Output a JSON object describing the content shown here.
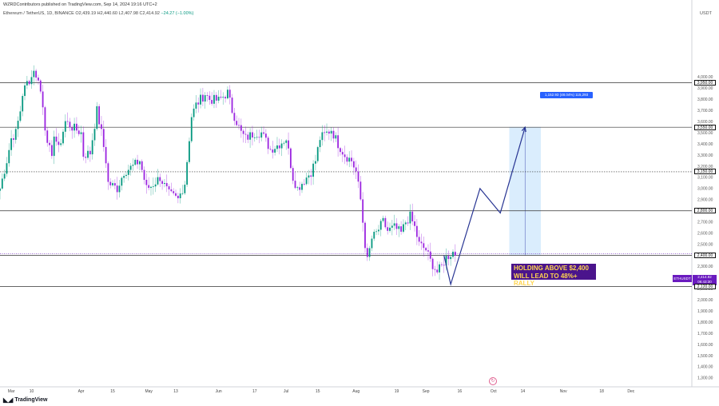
{
  "header": {
    "publish_line": "WZRDContributors published on TradingView.com, Sep 14, 2024 19:16 UTC+2",
    "symbol_line": "Ethereum / TetherUS, 1D, BINANCE  O2,439.19  H2,440.60  L2,407.98  C2,414.92",
    "change": "−24.27 (−1.00%)"
  },
  "branding": {
    "logo_icon": "tradingview-logo-icon",
    "name": "TradingView"
  },
  "colors": {
    "up": "#089981",
    "down": "#9c27e0",
    "accent": "#6a1bbf",
    "projection_line": "#283593",
    "range_fill": "#bbdefb"
  },
  "current_price": {
    "symbol": "ETHUSDT",
    "value": "2,414.92",
    "countdown": "06:43:30"
  },
  "annotation": {
    "line1": "HOLDING ABOVE $2,400",
    "line2": "WILL LEAD TO 48%+ RALLY"
  },
  "range_label": "1,152.93 (48.04%) 115,293",
  "chart_data": {
    "type": "candlestick",
    "symbol": "ETHUSDT",
    "timeframe": "1D",
    "y_unit": "USDT",
    "ylim": [
      1220,
      4620
    ],
    "xlim": [
      "2024-02-25",
      "2024-12-28"
    ],
    "x_ticks": [
      {
        "date": "2024-03-01",
        "label": "Mar"
      },
      {
        "date": "2024-03-10",
        "label": "10"
      },
      {
        "date": "2024-04-01",
        "label": "Apr"
      },
      {
        "date": "2024-04-15",
        "label": "15"
      },
      {
        "date": "2024-05-01",
        "label": "May"
      },
      {
        "date": "2024-05-13",
        "label": "13"
      },
      {
        "date": "2024-06-01",
        "label": "Jun"
      },
      {
        "date": "2024-06-17",
        "label": "17"
      },
      {
        "date": "2024-07-01",
        "label": "Jul"
      },
      {
        "date": "2024-07-15",
        "label": "15"
      },
      {
        "date": "2024-08-01",
        "label": "Aug"
      },
      {
        "date": "2024-08-19",
        "label": "19"
      },
      {
        "date": "2024-09-01",
        "label": "Sep"
      },
      {
        "date": "2024-09-16",
        "label": "16"
      },
      {
        "date": "2024-10-01",
        "label": "Oct"
      },
      {
        "date": "2024-10-14",
        "label": "14"
      },
      {
        "date": "2024-11-01",
        "label": "Nov"
      },
      {
        "date": "2024-11-18",
        "label": "18"
      },
      {
        "date": "2024-12-01",
        "label": "Dec"
      }
    ],
    "y_ticks": [
      "4,000.00",
      "3,900.00",
      "3,800.00",
      "3,700.00",
      "3,600.00",
      "3,500.00",
      "3,400.00",
      "3,300.00",
      "3,200.00",
      "3,100.00",
      "3,000.00",
      "2,900.00",
      "2,800.00",
      "2,700.00",
      "2,600.00",
      "2,500.00",
      "2,400.00",
      "2,300.00",
      "2,200.00",
      "2,100.00",
      "2,000.00",
      "1,900.00",
      "1,800.00",
      "1,700.00",
      "1,600.00",
      "1,500.00",
      "1,400.00",
      "1,300.00"
    ],
    "levels": [
      {
        "value": 3950,
        "label": "3,950.00",
        "style": "solid"
      },
      {
        "value": 3550,
        "label": "3,550.00",
        "style": "solid"
      },
      {
        "value": 3150,
        "label": "3,150.00",
        "style": "dotted"
      },
      {
        "value": 2800,
        "label": "2,800.00",
        "style": "solid"
      },
      {
        "value": 2400,
        "label": "2,400.00",
        "style": "solid"
      },
      {
        "value": 2120,
        "label": "2,120.00",
        "style": "solid"
      }
    ],
    "anchors": [
      [
        "2024-02-25",
        3000
      ],
      [
        "2024-02-28",
        3250
      ],
      [
        "2024-03-01",
        3450
      ],
      [
        "2024-03-03",
        3500
      ],
      [
        "2024-03-05",
        3700
      ],
      [
        "2024-03-06",
        3850
      ],
      [
        "2024-03-08",
        3950
      ],
      [
        "2024-03-10",
        4000
      ],
      [
        "2024-03-11",
        4080
      ],
      [
        "2024-03-12",
        3980
      ],
      [
        "2024-03-13",
        4000
      ],
      [
        "2024-03-15",
        3730
      ],
      [
        "2024-03-16",
        3550
      ],
      [
        "2024-03-19",
        3250
      ],
      [
        "2024-03-20",
        3500
      ],
      [
        "2024-03-22",
        3350
      ],
      [
        "2024-03-25",
        3600
      ],
      [
        "2024-03-28",
        3550
      ],
      [
        "2024-04-01",
        3500
      ],
      [
        "2024-04-02",
        3300
      ],
      [
        "2024-04-05",
        3320
      ],
      [
        "2024-04-08",
        3700
      ],
      [
        "2024-04-10",
        3500
      ],
      [
        "2024-04-12",
        3250
      ],
      [
        "2024-04-13",
        3050
      ],
      [
        "2024-04-17",
        3000
      ],
      [
        "2024-04-20",
        3150
      ],
      [
        "2024-04-24",
        3200
      ],
      [
        "2024-04-27",
        3250
      ],
      [
        "2024-04-30",
        3000
      ],
      [
        "2024-05-02",
        3020
      ],
      [
        "2024-05-06",
        3100
      ],
      [
        "2024-05-10",
        2950
      ],
      [
        "2024-05-14",
        2900
      ],
      [
        "2024-05-17",
        3050
      ],
      [
        "2024-05-20",
        3650
      ],
      [
        "2024-05-22",
        3750
      ],
      [
        "2024-05-26",
        3850
      ],
      [
        "2024-05-28",
        3800
      ],
      [
        "2024-06-01",
        3790
      ],
      [
        "2024-06-05",
        3860
      ],
      [
        "2024-06-07",
        3700
      ],
      [
        "2024-06-11",
        3500
      ],
      [
        "2024-06-13",
        3450
      ],
      [
        "2024-06-17",
        3500
      ],
      [
        "2024-06-20",
        3500
      ],
      [
        "2024-06-24",
        3350
      ],
      [
        "2024-06-28",
        3400
      ],
      [
        "2024-07-01",
        3450
      ],
      [
        "2024-07-04",
        3100
      ],
      [
        "2024-07-06",
        3000
      ],
      [
        "2024-07-08",
        3050
      ],
      [
        "2024-07-12",
        3150
      ],
      [
        "2024-07-14",
        3250
      ],
      [
        "2024-07-16",
        3450
      ],
      [
        "2024-07-21",
        3530
      ],
      [
        "2024-07-24",
        3400
      ],
      [
        "2024-07-27",
        3300
      ],
      [
        "2024-07-30",
        3250
      ],
      [
        "2024-08-01",
        3150
      ],
      [
        "2024-08-03",
        2900
      ],
      [
        "2024-08-05",
        2500
      ],
      [
        "2024-08-06",
        2350
      ],
      [
        "2024-08-08",
        2550
      ],
      [
        "2024-08-10",
        2600
      ],
      [
        "2024-08-13",
        2700
      ],
      [
        "2024-08-15",
        2620
      ],
      [
        "2024-08-18",
        2650
      ],
      [
        "2024-08-21",
        2600
      ],
      [
        "2024-08-23",
        2700
      ],
      [
        "2024-08-25",
        2750
      ],
      [
        "2024-08-27",
        2650
      ],
      [
        "2024-08-29",
        2500
      ],
      [
        "2024-09-01",
        2450
      ],
      [
        "2024-09-03",
        2350
      ],
      [
        "2024-09-06",
        2250
      ],
      [
        "2024-09-08",
        2300
      ],
      [
        "2024-09-10",
        2380
      ],
      [
        "2024-09-13",
        2430
      ],
      [
        "2024-09-14",
        2414.92
      ]
    ],
    "projection": [
      [
        "2024-09-09",
        2400
      ],
      [
        "2024-09-12",
        2140
      ],
      [
        "2024-09-25",
        3000
      ],
      [
        "2024-10-04",
        2780
      ],
      [
        "2024-10-15",
        3550
      ]
    ],
    "range_box": {
      "start": "2024-10-08",
      "end": "2024-10-22",
      "low": 2400,
      "high": 3553
    }
  }
}
